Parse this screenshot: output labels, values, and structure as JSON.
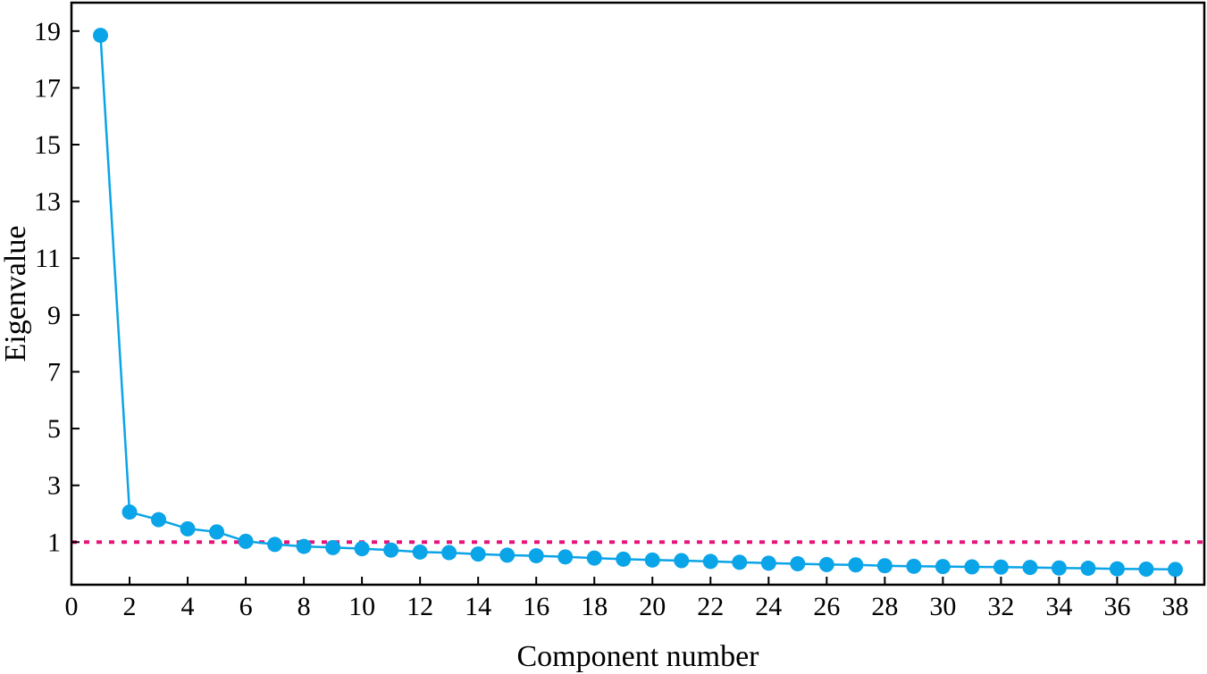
{
  "chart_data": {
    "type": "line",
    "xlabel": "Component number",
    "ylabel": "Eigenvalue",
    "xlim": [
      0,
      39
    ],
    "ylim": [
      -0.5,
      20
    ],
    "x_ticks": [
      0,
      2,
      4,
      6,
      8,
      10,
      12,
      14,
      16,
      18,
      20,
      22,
      24,
      26,
      28,
      30,
      32,
      34,
      36,
      38
    ],
    "y_ticks": [
      1,
      3,
      5,
      7,
      9,
      11,
      13,
      15,
      17,
      19
    ],
    "grid": false,
    "legend": "none",
    "series": [
      {
        "color": "#0aa4e8",
        "x": [
          1,
          2,
          3,
          4,
          5,
          6,
          7,
          8,
          9,
          10,
          11,
          12,
          13,
          14,
          15,
          16,
          17,
          18,
          19,
          20,
          21,
          22,
          23,
          24,
          25,
          26,
          27,
          28,
          29,
          30,
          31,
          32,
          33,
          34,
          35,
          36,
          37,
          38
        ],
        "values": [
          18.85,
          2.06,
          1.79,
          1.47,
          1.36,
          1.03,
          0.92,
          0.85,
          0.81,
          0.77,
          0.72,
          0.65,
          0.63,
          0.58,
          0.54,
          0.52,
          0.48,
          0.44,
          0.4,
          0.37,
          0.35,
          0.32,
          0.29,
          0.26,
          0.24,
          0.21,
          0.2,
          0.17,
          0.15,
          0.14,
          0.13,
          0.12,
          0.11,
          0.09,
          0.08,
          0.06,
          0.05,
          0.04
        ]
      }
    ],
    "reference_line": {
      "y": 1,
      "color": "#e8137a",
      "style": "dotted"
    }
  }
}
